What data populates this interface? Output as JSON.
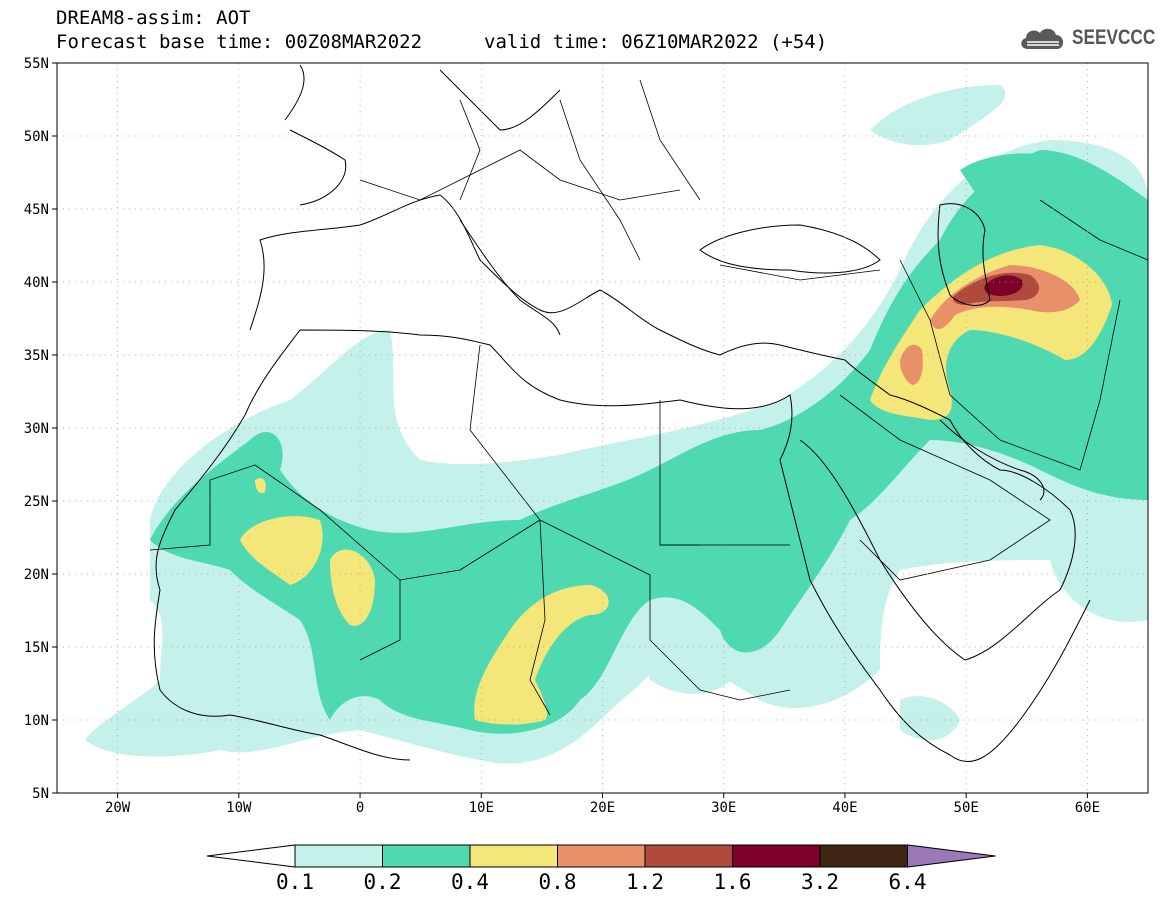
{
  "header": {
    "title_line1": "DREAM8-assim: AOT",
    "title_line2": "Forecast base time: 00Z08MAR2022",
    "valid_time": "valid time: 06Z10MAR2022 (+54)",
    "logo_text": "SEEVCCC"
  },
  "map": {
    "lon_range": [
      -25,
      65
    ],
    "lat_range": [
      5,
      55
    ],
    "x_ticks": [
      {
        "value": -20,
        "label": "20W"
      },
      {
        "value": -10,
        "label": "10W"
      },
      {
        "value": 0,
        "label": "0"
      },
      {
        "value": 10,
        "label": "10E"
      },
      {
        "value": 20,
        "label": "20E"
      },
      {
        "value": 30,
        "label": "30E"
      },
      {
        "value": 40,
        "label": "40E"
      },
      {
        "value": 50,
        "label": "50E"
      },
      {
        "value": 60,
        "label": "60E"
      }
    ],
    "y_ticks": [
      {
        "value": 55,
        "label": "55N"
      },
      {
        "value": 50,
        "label": "50N"
      },
      {
        "value": 45,
        "label": "45N"
      },
      {
        "value": 40,
        "label": "40N"
      },
      {
        "value": 35,
        "label": "35N"
      },
      {
        "value": 30,
        "label": "30N"
      },
      {
        "value": 25,
        "label": "25N"
      },
      {
        "value": 20,
        "label": "20N"
      },
      {
        "value": 15,
        "label": "15N"
      },
      {
        "value": 10,
        "label": "10N"
      },
      {
        "value": 5,
        "label": "5N"
      }
    ],
    "grid": "dotted"
  },
  "colorbar": {
    "labels": [
      "0.1",
      "0.2",
      "0.4",
      "0.8",
      "1.2",
      "1.6",
      "3.2",
      "6.4"
    ],
    "colors": [
      "#c4f1ea",
      "#4ed9b0",
      "#f5e67a",
      "#e8906a",
      "#b04a3c",
      "#7c0028",
      "#3e2514",
      "#9b79b8"
    ],
    "below_color": "#ffffff"
  },
  "aot_colors": {
    "c01": "#c4f1ea",
    "c02": "#4ed9b0",
    "c04": "#f5e67a",
    "c08": "#e8906a",
    "c12": "#b04a3c",
    "c16": "#7c0028"
  }
}
